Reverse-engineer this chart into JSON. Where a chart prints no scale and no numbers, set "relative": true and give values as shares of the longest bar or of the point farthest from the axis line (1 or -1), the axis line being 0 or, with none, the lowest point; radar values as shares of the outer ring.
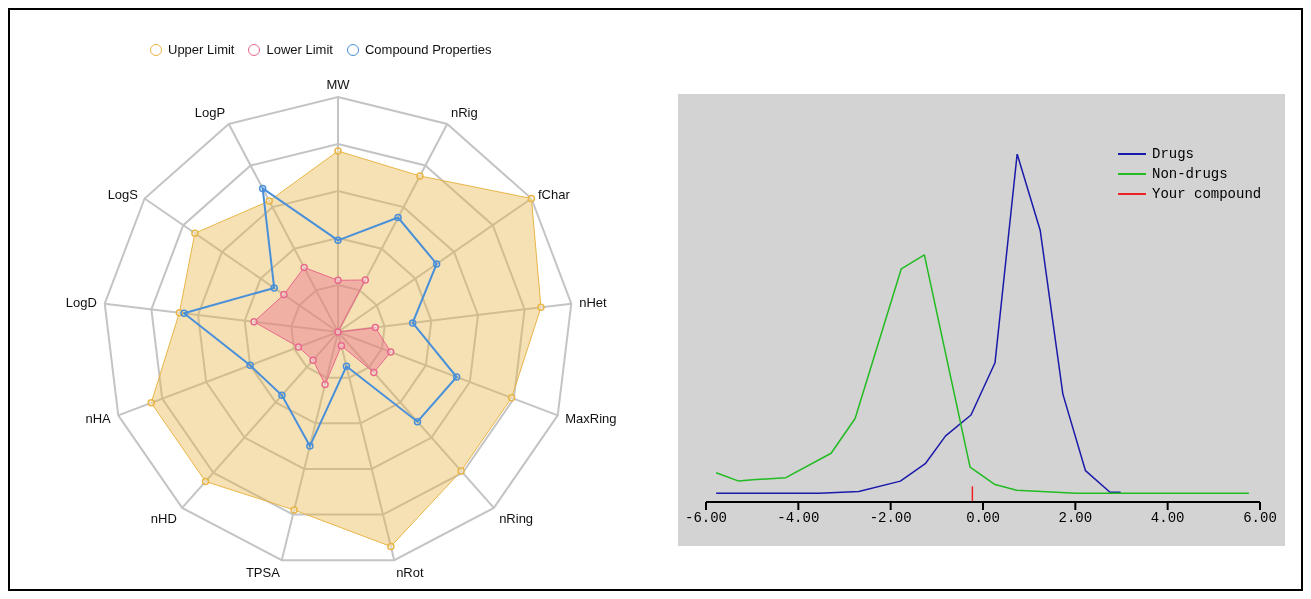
{
  "chart_data": [
    {
      "type": "radar",
      "relative": true,
      "grid": true,
      "legend": "top",
      "marker": "circle",
      "categories": [
        "MW",
        "nRig",
        "fChar",
        "nHet",
        "MaxRing",
        "nRing",
        "nRot",
        "TPSA",
        "nHD",
        "nHA",
        "LogD",
        "LogS",
        "LogP"
      ],
      "series": [
        {
          "name": "Upper Limit",
          "color": "#e8b547",
          "values": [
            0.77,
            0.75,
            1.0,
            0.87,
            0.79,
            0.79,
            0.94,
            0.78,
            0.85,
            0.85,
            0.68,
            0.74,
            0.63
          ]
        },
        {
          "name": "Lower Limit",
          "color": "#e8698c",
          "values": [
            0.22,
            0.25,
            0,
            0.16,
            0.24,
            0.23,
            0.06,
            0.23,
            0.16,
            0.18,
            0.36,
            0.28,
            0.31
          ]
        },
        {
          "name": "Compound Properties",
          "color": "#4a90d9",
          "values": [
            0.39,
            0.55,
            0.51,
            0.32,
            0.54,
            0.51,
            0.15,
            0.5,
            0.36,
            0.4,
            0.66,
            0.33,
            0.69
          ]
        }
      ]
    },
    {
      "type": "line",
      "relative": true,
      "grid": false,
      "legend": "top right",
      "marker": "none",
      "xlim": [
        -6,
        6
      ],
      "xticks": [
        {
          "value": -6,
          "label": "-6.00"
        },
        {
          "value": -4,
          "label": "-4.00"
        },
        {
          "value": -2,
          "label": "-2.00"
        },
        {
          "value": 0,
          "label": "0.00"
        },
        {
          "value": 2,
          "label": "2.00"
        },
        {
          "value": 4,
          "label": "4.00"
        },
        {
          "value": 6,
          "label": "6.00"
        }
      ],
      "series": [
        {
          "name": "Drugs",
          "color": "#1a1aaa",
          "x": [
            -5.78,
            -3.54,
            -2.69,
            -1.79,
            -1.25,
            -0.81,
            -0.26,
            0.26,
            0.74,
            1.24,
            1.73,
            2.22,
            2.75,
            2.98
          ],
          "values": [
            0.025,
            0.025,
            0.03,
            0.06,
            0.11,
            0.19,
            0.25,
            0.4,
            1.0,
            0.78,
            0.31,
            0.09,
            0.028,
            0.028
          ]
        },
        {
          "name": "Non-drugs",
          "color": "#22bb22",
          "x": [
            -5.78,
            -5.29,
            -4.99,
            -4.27,
            -3.29,
            -2.77,
            -1.77,
            -1.27,
            -0.28,
            0.26,
            0.73,
            2.01,
            5.76
          ],
          "values": [
            0.084,
            0.06,
            0.064,
            0.07,
            0.14,
            0.24,
            0.67,
            0.71,
            0.1,
            0.05,
            0.034,
            0.025,
            0.025
          ]
        },
        {
          "name": "Your compound",
          "color": "#ee2222",
          "x": [
            -0.23,
            -0.23
          ],
          "values": [
            0,
            0.045
          ]
        }
      ]
    }
  ]
}
